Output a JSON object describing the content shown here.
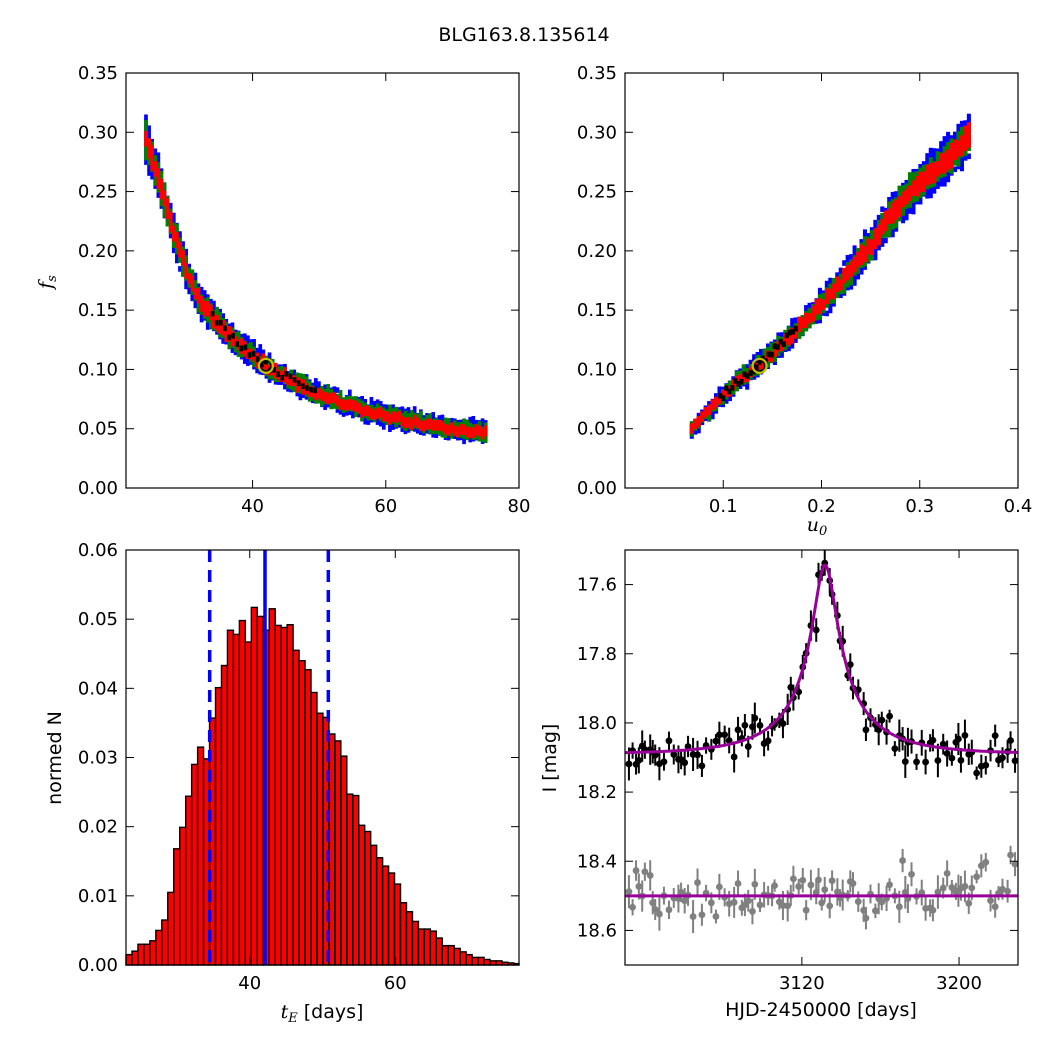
{
  "title": "BLG163.8.135614",
  "colors": {
    "outer": "#0000ff",
    "middle": "#008000",
    "inner": "#ff0000",
    "core": "#000000",
    "marker_edge": "#bfbf00",
    "hist_bar": "#ff0000",
    "hist_line": "#0000ff",
    "model": "#990099",
    "data_main": "#000000",
    "data_resid": "#808080"
  },
  "chart_data": [
    {
      "type": "heatmap",
      "panel": "top-left",
      "xlabel": "",
      "ylabel": "f_s",
      "xlim": [
        21,
        80
      ],
      "ylim": [
        0.0,
        0.35
      ],
      "xticks": [
        "40",
        "60",
        "80"
      ],
      "yticks": [
        "0.00",
        "0.05",
        "0.10",
        "0.15",
        "0.20",
        "0.25",
        "0.30",
        "0.35"
      ],
      "band_centerline": [
        [
          24,
          0.295
        ],
        [
          26,
          0.26
        ],
        [
          28,
          0.22
        ],
        [
          30,
          0.185
        ],
        [
          32,
          0.16
        ],
        [
          34,
          0.145
        ],
        [
          36,
          0.132
        ],
        [
          38,
          0.122
        ],
        [
          40,
          0.113
        ],
        [
          42,
          0.104
        ],
        [
          45,
          0.094
        ],
        [
          48,
          0.085
        ],
        [
          52,
          0.076
        ],
        [
          56,
          0.068
        ],
        [
          60,
          0.062
        ],
        [
          65,
          0.056
        ],
        [
          70,
          0.051
        ],
        [
          75,
          0.048
        ]
      ],
      "best_fit": [
        42.0,
        0.103
      ]
    },
    {
      "type": "heatmap",
      "panel": "top-right",
      "xlabel": "u_0",
      "ylabel": "",
      "xlim": [
        0.0,
        0.4
      ],
      "ylim": [
        0.0,
        0.35
      ],
      "xticks": [
        "0.1",
        "0.2",
        "0.3",
        "0.4"
      ],
      "yticks": [
        "0.00",
        "0.05",
        "0.10",
        "0.15",
        "0.20",
        "0.25",
        "0.30",
        "0.35"
      ],
      "band_centerline": [
        [
          0.068,
          0.05
        ],
        [
          0.09,
          0.07
        ],
        [
          0.11,
          0.087
        ],
        [
          0.13,
          0.1
        ],
        [
          0.15,
          0.115
        ],
        [
          0.17,
          0.13
        ],
        [
          0.19,
          0.148
        ],
        [
          0.21,
          0.165
        ],
        [
          0.23,
          0.185
        ],
        [
          0.25,
          0.205
        ],
        [
          0.27,
          0.23
        ],
        [
          0.29,
          0.25
        ],
        [
          0.31,
          0.265
        ],
        [
          0.33,
          0.28
        ],
        [
          0.35,
          0.297
        ]
      ],
      "best_fit": [
        0.137,
        0.103
      ]
    },
    {
      "type": "bar",
      "panel": "bottom-left",
      "xlabel": "t_E [days]",
      "ylabel": "normed N",
      "xlim": [
        23,
        77
      ],
      "ylim": [
        0.0,
        0.06
      ],
      "xticks": [
        "40",
        "60"
      ],
      "yticks": [
        "0.00",
        "0.01",
        "0.02",
        "0.03",
        "0.04",
        "0.05",
        "0.06"
      ],
      "bin_start": 23.0,
      "bin_width": 0.82,
      "values": [
        0.0015,
        0.002,
        0.003,
        0.003,
        0.0035,
        0.005,
        0.0065,
        0.0105,
        0.0168,
        0.0199,
        0.0244,
        0.029,
        0.0315,
        0.0298,
        0.0357,
        0.0401,
        0.0433,
        0.0484,
        0.0478,
        0.0498,
        0.0467,
        0.0517,
        0.0504,
        0.0484,
        0.0515,
        0.0491,
        0.0488,
        0.0492,
        0.0455,
        0.044,
        0.0427,
        0.0394,
        0.0364,
        0.0358,
        0.0334,
        0.0324,
        0.0302,
        0.0247,
        0.0245,
        0.0202,
        0.0193,
        0.0173,
        0.0155,
        0.0143,
        0.0133,
        0.0117,
        0.009,
        0.0077,
        0.0063,
        0.0052,
        0.0052,
        0.0049,
        0.0039,
        0.0028,
        0.0028,
        0.0024,
        0.0019,
        0.0015,
        0.0011,
        0.0011,
        0.0008,
        0.0006,
        0.0006,
        0.0004,
        0.0003,
        0.0002
      ],
      "median": 42.1,
      "lower": 34.5,
      "upper": 50.8
    },
    {
      "type": "scatter",
      "panel": "bottom-right",
      "xlabel": "HJD-2450000 [days]",
      "ylabel": "I [mag]",
      "xlim": [
        3030,
        3230
      ],
      "ylim": [
        18.7,
        17.5
      ],
      "xticks": [
        "3120",
        "3200"
      ],
      "yticks": [
        "17.6",
        "17.8",
        "18.0",
        "18.2",
        "18.4",
        "18.6"
      ],
      "model": {
        "t0": 3131.8,
        "tE": 43.0,
        "u0": 0.137,
        "fs": 0.103,
        "baseline": 18.09
      },
      "residual_offset": 18.5
    }
  ]
}
